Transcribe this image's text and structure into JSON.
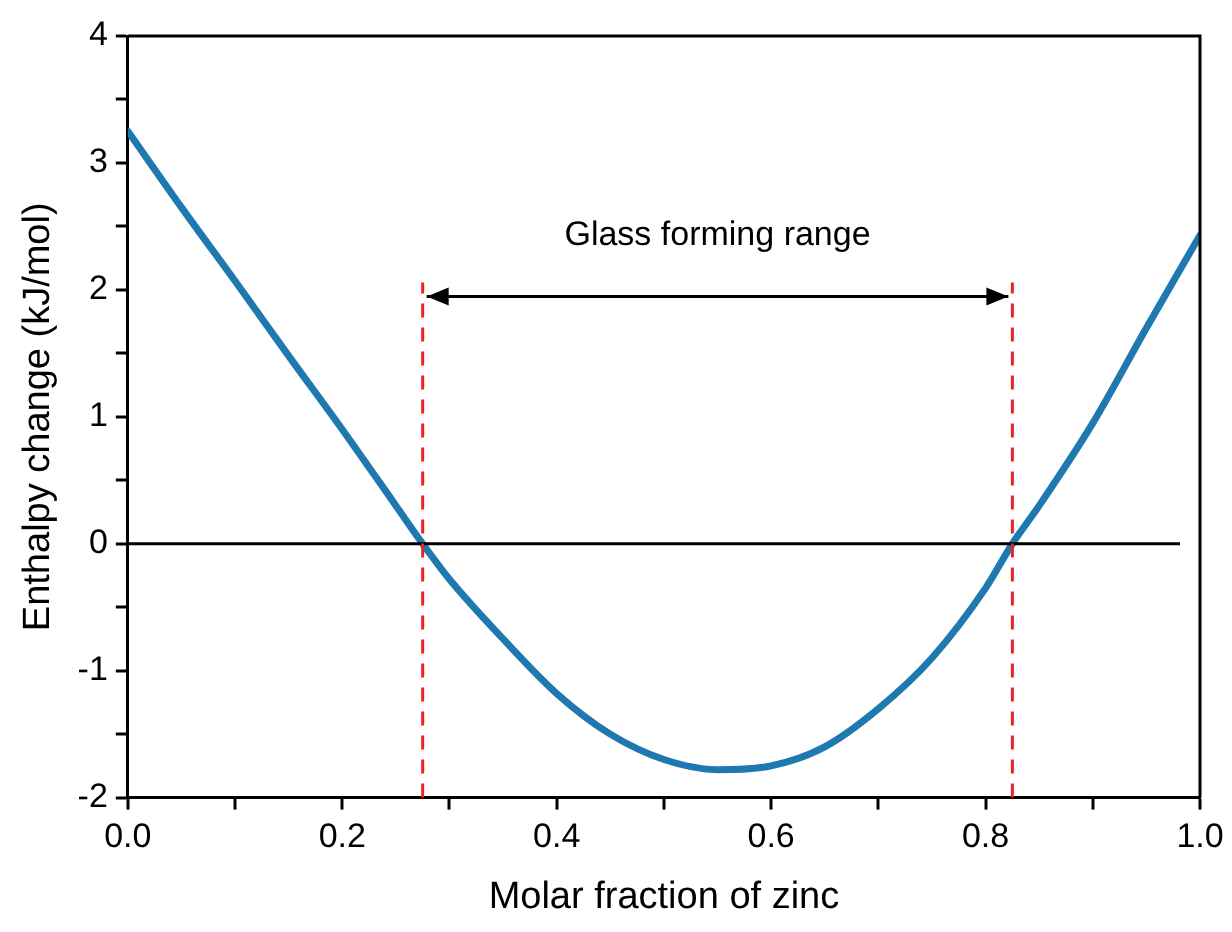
{
  "chart_data": {
    "type": "line",
    "xlabel": "Molar fraction of zinc",
    "ylabel": "Enthalpy change (kJ/mol)",
    "x": [
      0,
      0.05,
      0.1,
      0.15,
      0.2,
      0.25,
      0.275,
      0.3,
      0.35,
      0.4,
      0.45,
      0.5,
      0.55,
      0.6,
      0.65,
      0.7,
      0.75,
      0.8,
      0.825,
      0.85,
      0.9,
      0.95,
      1.0
    ],
    "series": [
      {
        "color": "#1f78b0",
        "values": [
          3.25,
          2.65,
          2.07,
          1.48,
          0.9,
          0.3,
          0,
          -0.28,
          -0.75,
          -1.18,
          -1.5,
          -1.7,
          -1.78,
          -1.75,
          -1.6,
          -1.3,
          -0.9,
          -0.35,
          0,
          0.3,
          0.95,
          1.7,
          2.43
        ]
      }
    ],
    "xlim": [
      0,
      1
    ],
    "xticks": [
      {
        "value": 0,
        "label": "0.0"
      },
      {
        "value": 0.1,
        "label": null
      },
      {
        "value": 0.2,
        "label": "0.2"
      },
      {
        "value": 0.3,
        "label": null
      },
      {
        "value": 0.4,
        "label": "0.4"
      },
      {
        "value": 0.5,
        "label": null
      },
      {
        "value": 0.6,
        "label": "0.6"
      },
      {
        "value": 0.7,
        "label": null
      },
      {
        "value": 0.8,
        "label": "0.8"
      },
      {
        "value": 0.9,
        "label": null
      },
      {
        "value": 1,
        "label": "1.0"
      }
    ],
    "ylim": [
      -2,
      4
    ],
    "yticks": [
      -2,
      {
        "value": -1.5,
        "label": null
      },
      -1,
      {
        "value": -0.5,
        "label": null
      },
      0,
      {
        "value": 0.5,
        "label": null
      },
      1,
      {
        "value": 1.5,
        "label": null
      },
      2,
      {
        "value": 2.5,
        "label": null
      },
      3,
      {
        "value": 3.5,
        "label": null
      },
      4
    ],
    "ref_lines": [
      {
        "axis": "y",
        "value": 0,
        "color": "#000000",
        "line_style": "solid"
      },
      {
        "axis": "x",
        "value": 0.275,
        "color": "#e8222a",
        "line_style": "dashed"
      },
      {
        "axis": "x",
        "value": 0.825,
        "color": "#e8222a",
        "line_style": "dashed"
      }
    ],
    "annotations": [
      "Glass forming range"
    ],
    "grid": false,
    "legend": false,
    "marker": "none",
    "line_style": "solid"
  }
}
